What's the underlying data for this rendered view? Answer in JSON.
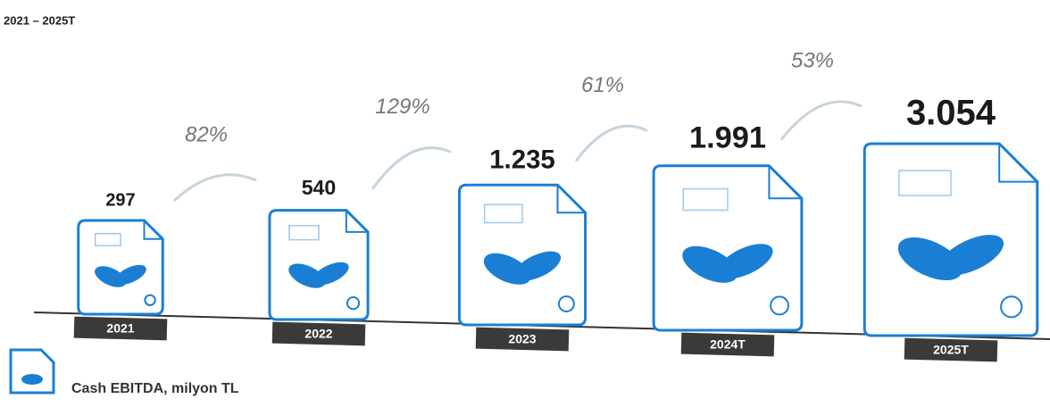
{
  "chart_data": {
    "type": "bar",
    "title": "2021 – 2025T",
    "categories": [
      "2021",
      "2022",
      "2023",
      "2024T",
      "2025T"
    ],
    "values": [
      297,
      540,
      1235,
      1991,
      3054
    ],
    "value_labels": [
      "297",
      "540",
      "1.235",
      "1.991",
      "3.054"
    ],
    "growth": {
      "values": [
        82,
        129,
        61,
        53
      ],
      "value_labels": [
        "82%",
        "129%",
        "61%",
        "53%"
      ]
    },
    "color": "#1a7fd4",
    "legend": "Cash EBITDA, milyon TL"
  }
}
